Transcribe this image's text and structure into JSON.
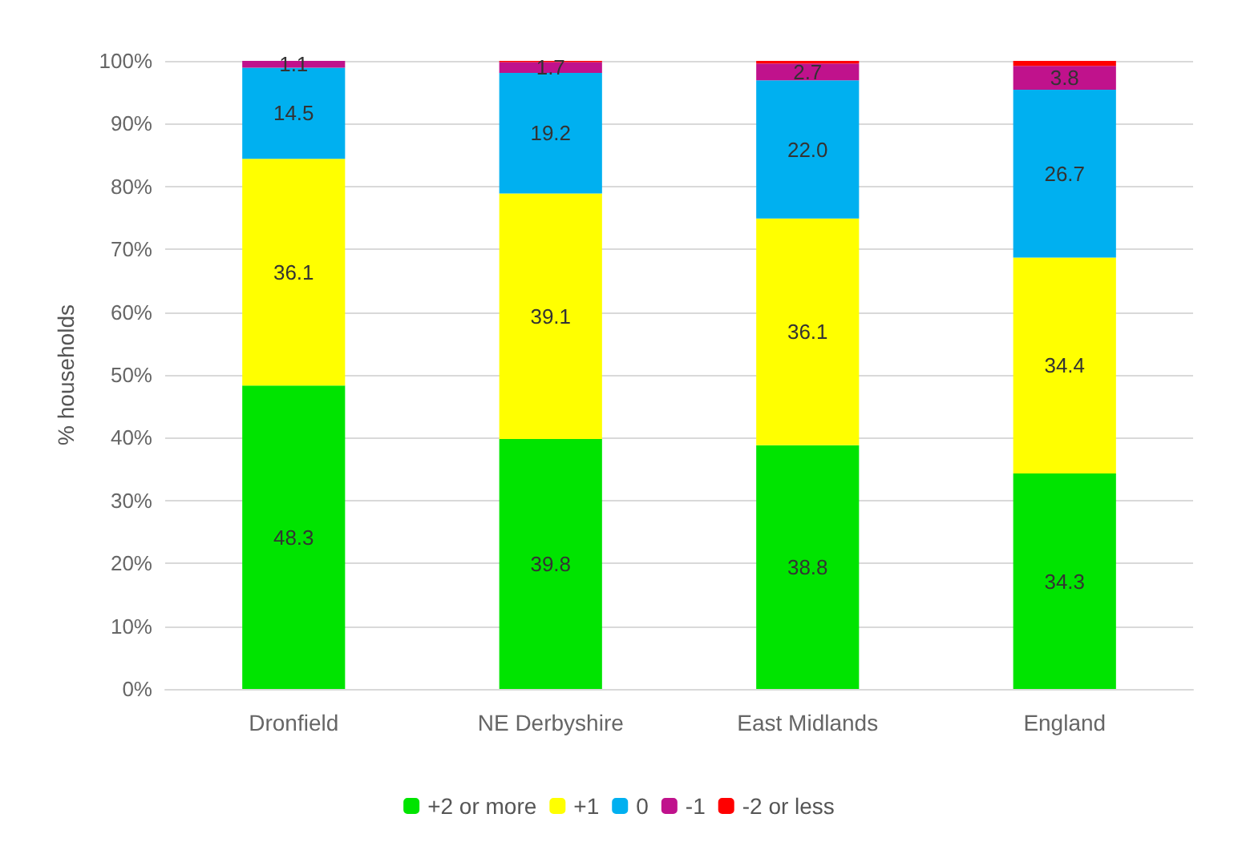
{
  "chart_data": {
    "type": "bar",
    "stacked": true,
    "ylabel": "% households",
    "categories": [
      "Dronfield",
      "NE Derbyshire",
      "East Midlands",
      "England"
    ],
    "series": [
      {
        "name": "+2 or more",
        "color": "#00e400",
        "values": [
          48.3,
          39.8,
          38.8,
          34.3
        ],
        "value_labels": [
          "48.3",
          "39.8",
          "38.8",
          "34.3"
        ]
      },
      {
        "name": "+1",
        "color": "#ffff00",
        "values": [
          36.1,
          39.1,
          36.1,
          34.4
        ],
        "value_labels": [
          "36.1",
          "39.1",
          "36.1",
          "34.4"
        ]
      },
      {
        "name": "0",
        "color": "#00b0f0",
        "values": [
          14.5,
          19.2,
          22.0,
          26.7
        ],
        "value_labels": [
          "14.5",
          "19.2",
          "22.0",
          "26.7"
        ]
      },
      {
        "name": "-1",
        "color": "#c0128c",
        "values": [
          1.1,
          1.7,
          2.7,
          3.8
        ],
        "value_labels": [
          "1.1",
          "1.7",
          "2.7",
          "3.8"
        ]
      },
      {
        "name": "-2 or less",
        "color": "#ff0000",
        "values": [
          0,
          0.2,
          0.4,
          0.8
        ]
      }
    ],
    "ylim": [
      0,
      100
    ],
    "yticks": [
      {
        "value": 0,
        "label": "0%"
      },
      {
        "value": 10,
        "label": "10%"
      },
      {
        "value": 20,
        "label": "20%"
      },
      {
        "value": 30,
        "label": "30%"
      },
      {
        "value": 40,
        "label": "40%"
      },
      {
        "value": 50,
        "label": "50%"
      },
      {
        "value": 60,
        "label": "60%"
      },
      {
        "value": 70,
        "label": "70%"
      },
      {
        "value": 80,
        "label": "80%"
      },
      {
        "value": 90,
        "label": "90%"
      },
      {
        "value": 100,
        "label": "100%"
      }
    ],
    "grid": "y",
    "legend": "bottom"
  }
}
